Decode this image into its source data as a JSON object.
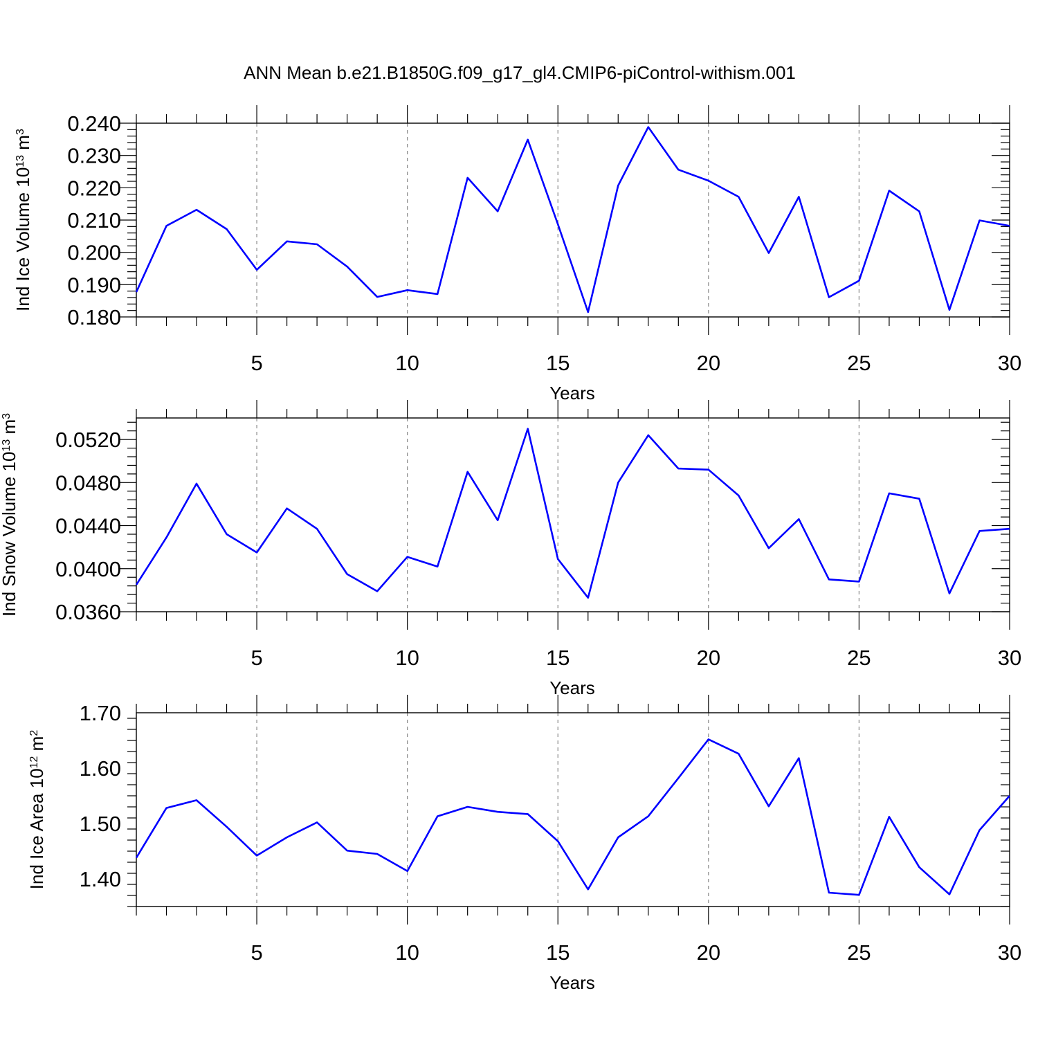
{
  "figure": {
    "title": "ANN Mean b.e21.B1850G.f09_g17_gl4.CMIP6-piControl-withism.001",
    "line_color": "#0000ff",
    "grid_color": "#888888"
  },
  "chart_data": [
    {
      "type": "line",
      "title": "ANN Mean b.e21.B1850G.f09_g17_gl4.CMIP6-piControl-withism.001",
      "xlabel": "Years",
      "ylabel": {
        "text": "Ind Ice Volume 10",
        "sup": "13",
        "unit": " m",
        "unit_sup": "3"
      },
      "xlim": [
        1,
        30
      ],
      "ylim": [
        0.18,
        0.24
      ],
      "xticks": [
        5,
        10,
        15,
        20,
        25,
        30
      ],
      "xtick_labels": [
        "5",
        "10",
        "15",
        "20",
        "25",
        "30"
      ],
      "yticks": [
        0.18,
        0.19,
        0.2,
        0.21,
        0.22,
        0.23,
        0.24
      ],
      "ytick_labels": [
        "0.180",
        "0.190",
        "0.200",
        "0.210",
        "0.220",
        "0.230",
        "0.240"
      ],
      "grid": "vertical-dashed",
      "series": [
        {
          "color": "#0000ff",
          "x": [
            1,
            2,
            3,
            4,
            5,
            6,
            7,
            8,
            9,
            10,
            11,
            12,
            13,
            14,
            15,
            16,
            17,
            18,
            19,
            20,
            21,
            22,
            23,
            24,
            25,
            26,
            27,
            28,
            29,
            30
          ],
          "y": [
            0.1877,
            0.2082,
            0.2132,
            0.2072,
            0.1946,
            0.2034,
            0.2025,
            0.1956,
            0.1862,
            0.1883,
            0.1871,
            0.2231,
            0.2127,
            0.2349,
            0.2087,
            0.1815,
            0.2207,
            0.2388,
            0.2256,
            0.2222,
            0.2172,
            0.1998,
            0.2172,
            0.1861,
            0.1912,
            0.2191,
            0.2127,
            0.1822,
            0.2099,
            0.2082
          ]
        }
      ]
    },
    {
      "type": "line",
      "xlabel": "Years",
      "ylabel": {
        "text": "Ind Snow Volume 10",
        "sup": "13",
        "unit": " m",
        "unit_sup": "3"
      },
      "xlim": [
        1,
        30
      ],
      "ylim": [
        0.036,
        0.054
      ],
      "xticks": [
        5,
        10,
        15,
        20,
        25,
        30
      ],
      "xtick_labels": [
        "5",
        "10",
        "15",
        "20",
        "25",
        "30"
      ],
      "yticks": [
        0.036,
        0.04,
        0.044,
        0.048,
        0.052
      ],
      "ytick_labels": [
        "0.0360",
        "0.0400",
        "0.0440",
        "0.0480",
        "0.0520"
      ],
      "grid": "vertical-dashed",
      "series": [
        {
          "color": "#0000ff",
          "x": [
            1,
            2,
            3,
            4,
            5,
            6,
            7,
            8,
            9,
            10,
            11,
            12,
            13,
            14,
            15,
            16,
            17,
            18,
            19,
            20,
            21,
            22,
            23,
            24,
            25,
            26,
            27,
            28,
            29,
            30
          ],
          "y": [
            0.0385,
            0.0429,
            0.0479,
            0.0432,
            0.0415,
            0.0456,
            0.0437,
            0.0395,
            0.0379,
            0.0411,
            0.0402,
            0.049,
            0.0445,
            0.053,
            0.0409,
            0.0373,
            0.048,
            0.0524,
            0.0493,
            0.0492,
            0.0468,
            0.0419,
            0.0446,
            0.039,
            0.0388,
            0.047,
            0.0465,
            0.0377,
            0.0435,
            0.0437
          ]
        }
      ]
    },
    {
      "type": "line",
      "xlabel": "Years",
      "ylabel": {
        "text": "Ind Ice Area 10",
        "sup": "12",
        "unit": " m",
        "unit_sup": "2"
      },
      "xlim": [
        1,
        30
      ],
      "ylim": [
        1.35,
        1.7
      ],
      "xticks": [
        5,
        10,
        15,
        20,
        25,
        30
      ],
      "xtick_labels": [
        "5",
        "10",
        "15",
        "20",
        "25",
        "30"
      ],
      "yticks": [
        1.4,
        1.5,
        1.6,
        1.7
      ],
      "ytick_labels": [
        "1.40",
        "1.50",
        "1.60",
        "1.70"
      ],
      "grid": "vertical-dashed",
      "series": [
        {
          "color": "#0000ff",
          "x": [
            1,
            2,
            3,
            4,
            5,
            6,
            7,
            8,
            9,
            10,
            11,
            12,
            13,
            14,
            15,
            16,
            17,
            18,
            19,
            20,
            21,
            22,
            23,
            24,
            25,
            26,
            27,
            28,
            29,
            30
          ],
          "y": [
            1.438,
            1.528,
            1.542,
            1.494,
            1.442,
            1.475,
            1.502,
            1.451,
            1.445,
            1.414,
            1.513,
            1.53,
            1.521,
            1.517,
            1.468,
            1.381,
            1.475,
            1.513,
            1.582,
            1.652,
            1.626,
            1.531,
            1.618,
            1.375,
            1.371,
            1.512,
            1.421,
            1.372,
            1.488,
            1.55
          ]
        }
      ]
    }
  ]
}
